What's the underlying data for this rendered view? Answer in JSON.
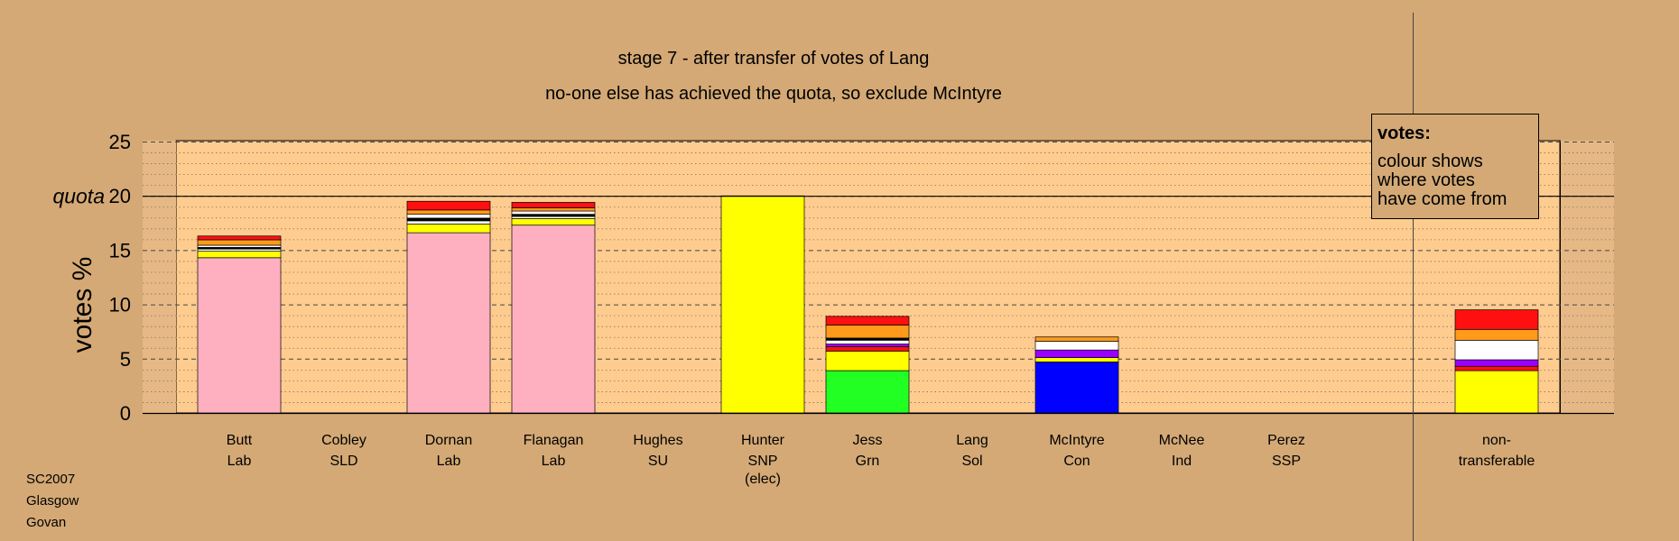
{
  "chart_data": {
    "type": "bar",
    "stacked": true,
    "title": "stage 7 - after transfer of votes of Lang",
    "subtitle": "no-one else has achieved the quota, so exclude McIntyre",
    "ylabel": "votes %",
    "ylim": [
      0,
      25
    ],
    "yticks": [
      "0",
      "5",
      "10",
      "15",
      "20",
      "25"
    ],
    "quota": {
      "value": 20,
      "label": "quota"
    },
    "grid": "dotted minor lines every 1%, dashed major lines every 5%",
    "legend_box": {
      "heading": "votes:",
      "lines": [
        "colour shows",
        "where votes",
        "have come from"
      ]
    },
    "footer": [
      "SC2007",
      "Glasgow",
      "Govan"
    ],
    "categories": [
      {
        "name": "Butt",
        "party": "Lab",
        "segments": [
          {
            "value": 14.3,
            "color": "#ffb0c0"
          },
          {
            "value": 0.6,
            "color": "#ffff00"
          },
          {
            "value": 0.2,
            "color": "#ffffff"
          },
          {
            "value": 0.15,
            "color": "#000000"
          },
          {
            "value": 0.2,
            "color": "#ffffff"
          },
          {
            "value": 0.5,
            "color": "#ff9a1a"
          },
          {
            "value": 0.35,
            "color": "#ff1010"
          }
        ]
      },
      {
        "name": "Cobley",
        "party": "SLD",
        "segments": []
      },
      {
        "name": "Dornan",
        "party": "Lab",
        "segments": [
          {
            "value": 16.6,
            "color": "#ffb0c0"
          },
          {
            "value": 0.8,
            "color": "#ffff00"
          },
          {
            "value": 0.3,
            "color": "#ffffff"
          },
          {
            "value": 0.25,
            "color": "#000000"
          },
          {
            "value": 0.35,
            "color": "#ffffff"
          },
          {
            "value": 0.4,
            "color": "#ff9a1a"
          },
          {
            "value": 0.8,
            "color": "#ff1010"
          }
        ]
      },
      {
        "name": "Flanagan",
        "party": "Lab",
        "segments": [
          {
            "value": 17.3,
            "color": "#ffb0c0"
          },
          {
            "value": 0.6,
            "color": "#ffff00"
          },
          {
            "value": 0.2,
            "color": "#ffffff"
          },
          {
            "value": 0.2,
            "color": "#000000"
          },
          {
            "value": 0.3,
            "color": "#ffffff"
          },
          {
            "value": 0.3,
            "color": "#ff9a1a"
          },
          {
            "value": 0.5,
            "color": "#ff1010"
          }
        ]
      },
      {
        "name": "Hughes",
        "party": "SU",
        "segments": []
      },
      {
        "name": "Hunter",
        "party": "SNP",
        "note": "(elec)",
        "segments": [
          {
            "value": 20.0,
            "color": "#ffff00"
          }
        ]
      },
      {
        "name": "Jess",
        "party": "Grn",
        "segments": [
          {
            "value": 3.9,
            "color": "#22ff22"
          },
          {
            "value": 1.8,
            "color": "#ffff00"
          },
          {
            "value": 0.4,
            "color": "#ff1010"
          },
          {
            "value": 0.25,
            "color": "#9a00ff"
          },
          {
            "value": 0.35,
            "color": "#ffffff"
          },
          {
            "value": 0.2,
            "color": "#000000"
          },
          {
            "value": 1.2,
            "color": "#ff9a1a"
          },
          {
            "value": 0.8,
            "color": "#ff1010"
          }
        ]
      },
      {
        "name": "Lang",
        "party": "Sol",
        "segments": []
      },
      {
        "name": "McIntyre",
        "party": "Con",
        "segments": [
          {
            "value": 4.7,
            "color": "#0000ff"
          },
          {
            "value": 0.4,
            "color": "#ffff00"
          },
          {
            "value": 0.7,
            "color": "#9a00ff"
          },
          {
            "value": 0.8,
            "color": "#ffffff"
          },
          {
            "value": 0.4,
            "color": "#ff9a1a"
          }
        ]
      },
      {
        "name": "McNee",
        "party": "Ind",
        "segments": []
      },
      {
        "name": "Perez",
        "party": "SSP",
        "segments": []
      },
      {
        "name": "non-",
        "party": "transferable",
        "segments": [
          {
            "value": 3.9,
            "color": "#ffff00"
          },
          {
            "value": 0.4,
            "color": "#ff1010"
          },
          {
            "value": 0.6,
            "color": "#9a00ff"
          },
          {
            "value": 1.8,
            "color": "#ffffff"
          },
          {
            "value": 1.0,
            "color": "#ff9a1a"
          },
          {
            "value": 1.8,
            "color": "#ff1010"
          }
        ]
      }
    ]
  }
}
